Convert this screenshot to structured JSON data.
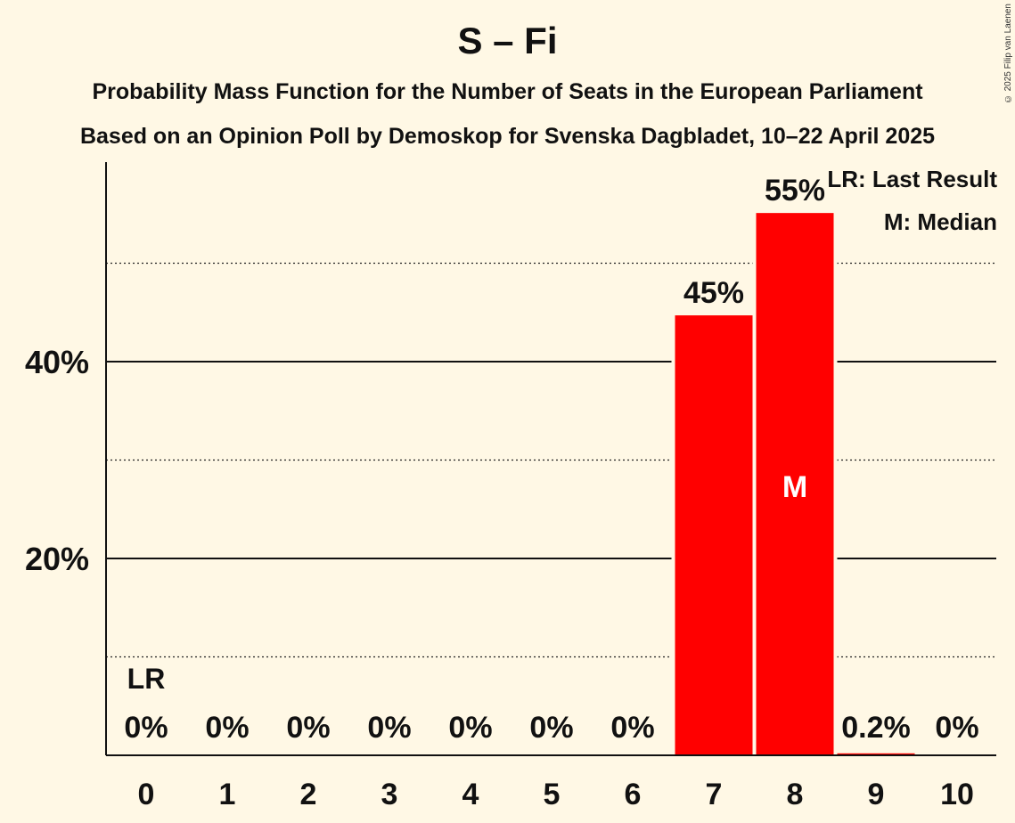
{
  "chart_data": {
    "type": "bar",
    "title": "S – Fi",
    "subtitle_1": "Probability Mass Function for the Number of Seats in the European Parliament",
    "subtitle_2": "Based on an Opinion Poll by Demoskop for Svenska Dagbladet, 10–22 April 2025",
    "categories": [
      "0",
      "1",
      "2",
      "3",
      "4",
      "5",
      "6",
      "7",
      "8",
      "9",
      "10"
    ],
    "values": [
      0,
      0,
      0,
      0,
      0,
      0,
      0,
      44.7,
      55.1,
      0.2,
      0
    ],
    "data_labels": [
      "0%",
      "0%",
      "0%",
      "0%",
      "0%",
      "0%",
      "0%",
      "45%",
      "55%",
      "0.2%",
      "0%"
    ],
    "ylim": [
      0,
      60
    ],
    "y_ticks": [
      {
        "value": 20,
        "label": "20%"
      },
      {
        "value": 40,
        "label": "40%"
      }
    ],
    "minor_gridlines": [
      10,
      30,
      50
    ],
    "bar_color": "#FF0000",
    "last_result_seat": 0,
    "last_result_label": "LR",
    "median_seat": 8,
    "median_label": "M",
    "legend": [
      "LR: Last Result",
      "M: Median"
    ],
    "xlabel": "",
    "ylabel": ""
  },
  "copyright": "© 2025 Filip van Laenen"
}
